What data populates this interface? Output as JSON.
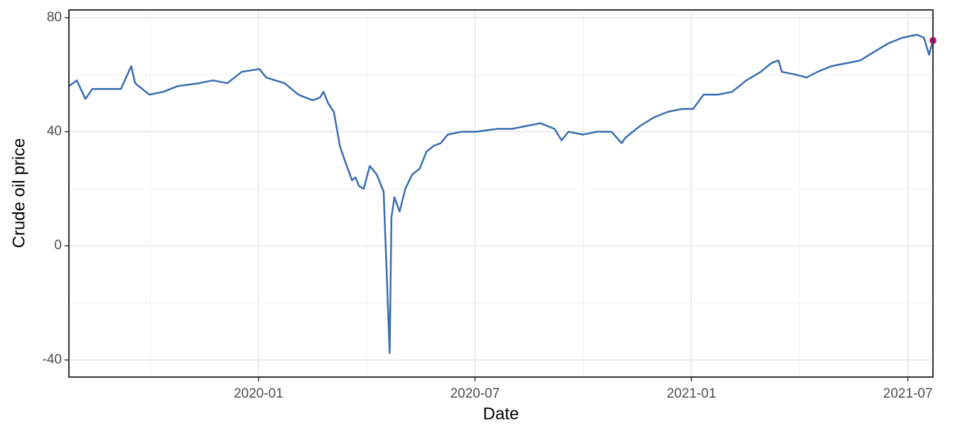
{
  "chart_data": {
    "type": "line",
    "x_label": "Date",
    "y_label": "Crude oil price",
    "x": [
      2019.562,
      2019.58,
      2019.6,
      2019.616,
      2019.649,
      2019.682,
      2019.706,
      2019.715,
      2019.748,
      2019.78,
      2019.813,
      2019.862,
      2019.895,
      2019.928,
      2019.961,
      2020.002,
      2020.018,
      2020.06,
      2020.092,
      2020.125,
      2020.142,
      2020.15,
      2020.161,
      2020.174,
      2020.188,
      2020.199,
      2020.216,
      2020.224,
      2020.232,
      2020.243,
      2020.257,
      2020.273,
      2020.289,
      2020.303,
      2020.307,
      2020.314,
      2020.326,
      2020.339,
      2020.355,
      2020.372,
      2020.388,
      2020.404,
      2020.421,
      2020.437,
      2020.47,
      2020.503,
      2020.552,
      2020.585,
      2020.618,
      2020.651,
      2020.684,
      2020.7,
      2020.716,
      2020.749,
      2020.782,
      2020.815,
      2020.839,
      2020.848,
      2020.881,
      2020.913,
      2020.946,
      2020.979,
      2021.004,
      2021.028,
      2021.061,
      2021.094,
      2021.127,
      2021.16,
      2021.184,
      2021.201,
      2021.209,
      2021.242,
      2021.266,
      2021.291,
      2021.324,
      2021.357,
      2021.39,
      2021.422,
      2021.455,
      2021.488,
      2021.521,
      2021.537,
      2021.549,
      2021.558
    ],
    "values": [
      56,
      58,
      51.5,
      55,
      55,
      55,
      63,
      57,
      53,
      54,
      56,
      57,
      58,
      57,
      61,
      62,
      59,
      57,
      53,
      51,
      52,
      54,
      50,
      47,
      35,
      30,
      23,
      24,
      21,
      20,
      28,
      25,
      19,
      -37.6,
      10,
      17,
      12,
      20,
      25,
      27,
      33,
      35,
      36,
      39,
      40,
      40,
      41,
      41,
      42,
      43,
      41,
      37,
      40,
      39,
      40,
      40,
      36,
      38,
      42,
      45,
      47,
      48,
      48,
      53,
      53,
      54,
      58,
      61,
      64,
      65,
      61,
      60,
      59,
      61,
      63,
      64,
      65,
      68,
      71,
      73,
      74,
      73,
      67,
      72
    ],
    "color": "#3a6db0",
    "highlight": {
      "x": 2021.558,
      "y": 72,
      "color": "#c8107a"
    },
    "xlim": [
      2019.562,
      2021.558
    ],
    "xticks": [
      {
        "value": 2020.0,
        "label": "2020-01"
      },
      {
        "value": 2020.5,
        "label": "2020-07"
      },
      {
        "value": 2021.0,
        "label": "2021-01"
      },
      {
        "value": 2021.5,
        "label": "2021-07"
      }
    ],
    "ylim": [
      -46,
      82.7
    ],
    "yticks": [
      -40,
      0,
      40,
      80
    ],
    "grid": true
  }
}
